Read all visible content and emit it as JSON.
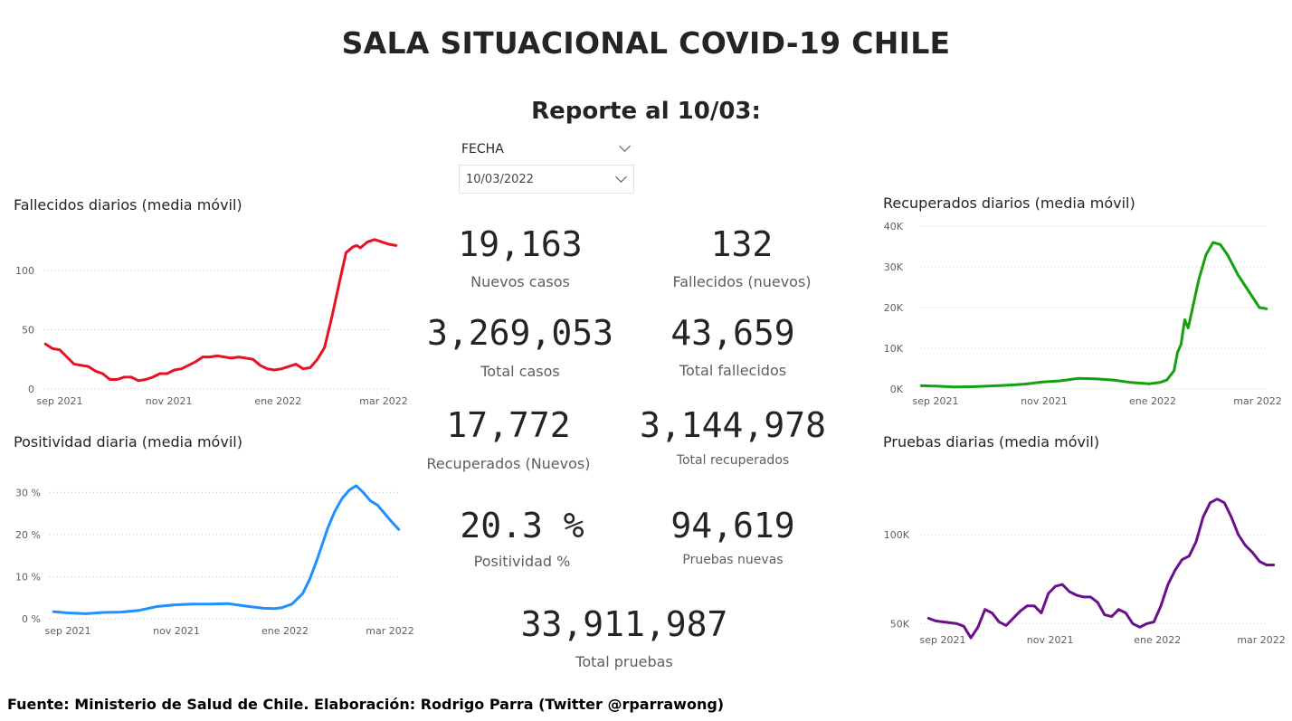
{
  "header": {
    "title": "SALA SITUACIONAL COVID-19 CHILE",
    "report": "Reporte al 10/03:"
  },
  "slicer": {
    "label": "FECHA",
    "value": "10/03/2022"
  },
  "kpis": [
    {
      "value": "19,163",
      "label": "Nuevos casos"
    },
    {
      "value": "132",
      "label": "Fallecidos (nuevos)"
    },
    {
      "value": "3,269,053",
      "label": "Total casos"
    },
    {
      "value": "43,659",
      "label": "Total fallecidos"
    },
    {
      "value": "17,772",
      "label": "Recuperados (Nuevos)"
    },
    {
      "value": "3,144,978",
      "label": "Total recuperados"
    },
    {
      "value": "20.3 %",
      "label": "Positividad %"
    },
    {
      "value": "94,619",
      "label": "Pruebas nuevas"
    },
    {
      "value": "33,911,987",
      "label": "Total pruebas"
    }
  ],
  "footer": "Fuente: Ministerio de Salud de Chile. Elaboración: Rodrigo Parra (Twitter @rparrawong)",
  "chart_data": [
    {
      "id": "fallecidos",
      "type": "line",
      "title": "Fallecidos diarios (media móvil)",
      "color": "#e81123",
      "x_tick_labels": [
        "sep 2021",
        "nov 2021",
        "ene 2022",
        "mar 2022"
      ],
      "x_ticks_day": [
        0,
        61,
        122,
        181
      ],
      "y_ticks": [
        0,
        50,
        100
      ],
      "y_tick_labels": [
        "0",
        "50",
        "100"
      ],
      "ylim": [
        0,
        135
      ],
      "grid": true,
      "series": [
        {
          "x_day": [
            -8,
            -4,
            0,
            4,
            8,
            12,
            16,
            20,
            24,
            28,
            32,
            36,
            40,
            44,
            48,
            52,
            56,
            60,
            64,
            68,
            72,
            76,
            80,
            84,
            88,
            92,
            96,
            100,
            104,
            108,
            112,
            116,
            120,
            124,
            128,
            132,
            136,
            140,
            144,
            148,
            152,
            156,
            160,
            164,
            166,
            168,
            172,
            176,
            180,
            184,
            188
          ],
          "values": [
            38,
            34,
            33,
            27,
            21,
            20,
            19,
            15,
            13,
            8,
            8,
            10,
            10,
            7,
            8,
            10,
            13,
            13,
            16,
            17,
            20,
            23,
            27,
            27,
            28,
            27,
            26,
            27,
            26,
            25,
            20,
            17,
            16,
            17,
            19,
            21,
            17,
            18,
            25,
            35,
            60,
            88,
            115,
            120,
            121,
            119,
            124,
            126,
            124,
            122,
            121
          ]
        }
      ]
    },
    {
      "id": "positividad",
      "type": "line",
      "title": "Positividad diaria (media móvil)",
      "color": "#1e90ff",
      "x_tick_labels": [
        "sep 2021",
        "nov 2021",
        "ene 2022",
        "mar 2022"
      ],
      "x_ticks_day": [
        0,
        61,
        122,
        181
      ],
      "y_ticks": [
        0,
        10,
        20,
        30
      ],
      "y_tick_labels": [
        "0 %",
        "10 %",
        "20 %",
        "30 %"
      ],
      "ylim": [
        0,
        32
      ],
      "grid": true,
      "series": [
        {
          "x_day": [
            -8,
            0,
            10,
            20,
            30,
            40,
            50,
            60,
            70,
            80,
            90,
            100,
            110,
            116,
            120,
            126,
            132,
            136,
            140,
            146,
            150,
            154,
            158,
            162,
            166,
            170,
            174,
            178,
            182,
            186
          ],
          "values": [
            1.7,
            1.4,
            1.2,
            1.5,
            1.6,
            2.0,
            2.9,
            3.3,
            3.5,
            3.5,
            3.6,
            3.0,
            2.5,
            2.4,
            2.6,
            3.5,
            6.0,
            9.5,
            14.0,
            21.5,
            25.5,
            28.5,
            30.5,
            31.6,
            30.0,
            28.0,
            27.0,
            25.0,
            23.0,
            21.2
          ]
        }
      ]
    },
    {
      "id": "recuperados",
      "type": "line",
      "title": "Recuperados diarios (media móvil)",
      "color": "#13a10e",
      "x_tick_labels": [
        "sep 2021",
        "nov 2021",
        "ene 2022",
        "mar 2022"
      ],
      "x_ticks_day": [
        0,
        61,
        122,
        181
      ],
      "y_ticks": [
        0,
        10000,
        20000,
        30000,
        40000
      ],
      "y_tick_labels": [
        "0K",
        "10K",
        "20K",
        "30K",
        "40K"
      ],
      "ylim": [
        0,
        40000
      ],
      "grid": true,
      "series": [
        {
          "x_day": [
            -8,
            0,
            10,
            20,
            30,
            40,
            50,
            60,
            70,
            80,
            90,
            100,
            110,
            120,
            126,
            130,
            134,
            136,
            138,
            140,
            142,
            144,
            148,
            152,
            156,
            160,
            164,
            170,
            176,
            182,
            186
          ],
          "values": [
            800,
            700,
            500,
            550,
            700,
            900,
            1200,
            1700,
            2000,
            2600,
            2500,
            2200,
            1600,
            1300,
            1600,
            2200,
            4500,
            9000,
            11000,
            17000,
            15000,
            19000,
            27000,
            33000,
            36000,
            35500,
            33000,
            28000,
            24000,
            20000,
            19700
          ]
        }
      ]
    },
    {
      "id": "pruebas",
      "type": "line",
      "title": "Pruebas diarias (media móvil)",
      "color": "#6c0f8c",
      "x_tick_labels": [
        "sep 2021",
        "nov 2021",
        "ene 2022",
        "mar 2022"
      ],
      "x_ticks_day": [
        0,
        61,
        122,
        181
      ],
      "y_ticks": [
        50000,
        100000
      ],
      "y_tick_labels": [
        "50K",
        "100K"
      ],
      "ylim": [
        38000,
        128000
      ],
      "grid": true,
      "series": [
        {
          "x_day": [
            -8,
            -4,
            0,
            4,
            8,
            12,
            16,
            20,
            24,
            28,
            32,
            36,
            40,
            44,
            48,
            52,
            56,
            60,
            64,
            68,
            72,
            76,
            80,
            84,
            88,
            92,
            96,
            100,
            104,
            108,
            112,
            116,
            120,
            124,
            128,
            132,
            136,
            140,
            144,
            148,
            152,
            156,
            160,
            164,
            168,
            172,
            176,
            180,
            184,
            188
          ],
          "values": [
            53000,
            51500,
            51000,
            50500,
            50000,
            48500,
            42000,
            48000,
            58000,
            56000,
            51000,
            49000,
            53000,
            57000,
            60000,
            60000,
            56000,
            67000,
            71000,
            72000,
            68000,
            66000,
            65000,
            65000,
            62000,
            55000,
            54000,
            58000,
            56000,
            50000,
            48000,
            50000,
            51000,
            60000,
            72000,
            80000,
            86000,
            88000,
            96000,
            110000,
            118000,
            120000,
            118000,
            110000,
            100000,
            94000,
            90000,
            85000,
            83000,
            83000
          ]
        }
      ]
    }
  ]
}
